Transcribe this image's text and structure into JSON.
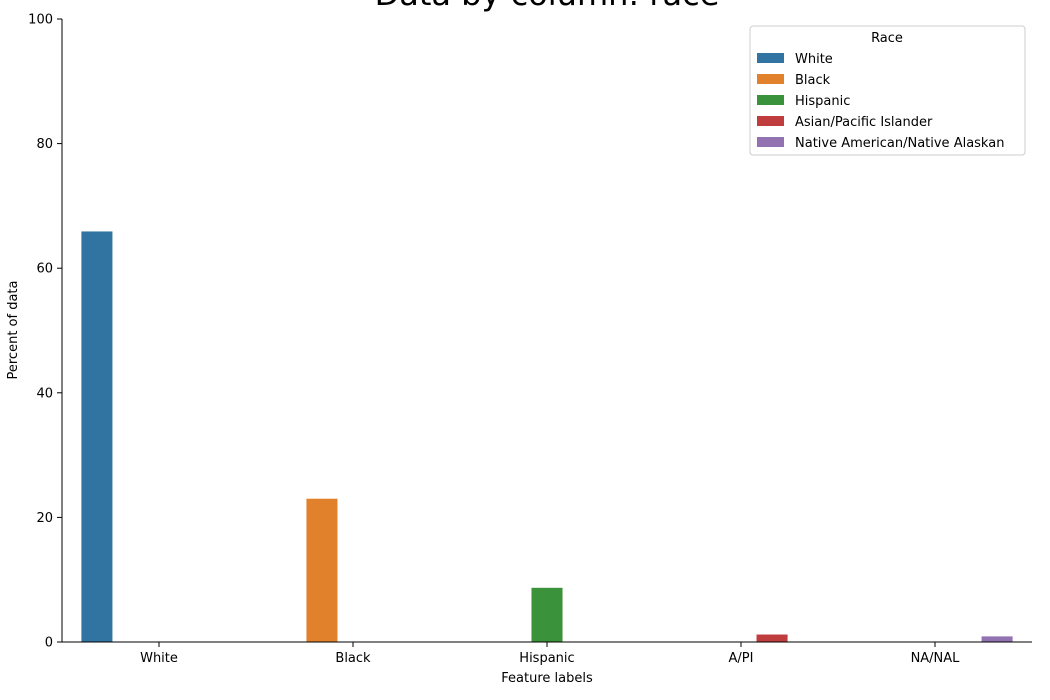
{
  "chart_data": {
    "type": "bar",
    "title": "Data by column: race",
    "xlabel": "Feature labels",
    "ylabel": "Percent of data",
    "ylim": [
      0,
      100
    ],
    "yticks": [
      0,
      20,
      40,
      60,
      80,
      100
    ],
    "categories": [
      "White",
      "Black",
      "Hispanic",
      "A/PI",
      "NA/NAL"
    ],
    "legend": {
      "title": "Race",
      "position": "top-right"
    },
    "grid": false,
    "series": [
      {
        "name": "White",
        "color": "#3274a1",
        "values": [
          65.9,
          null,
          null,
          null,
          null
        ]
      },
      {
        "name": "Black",
        "color": "#e1812c",
        "values": [
          null,
          23.0,
          null,
          null,
          null
        ]
      },
      {
        "name": "Hispanic",
        "color": "#3a923a",
        "values": [
          null,
          null,
          8.7,
          null,
          null
        ]
      },
      {
        "name": "Asian/Pacific Islander",
        "color": "#c03d3e",
        "values": [
          null,
          null,
          null,
          1.2,
          null
        ]
      },
      {
        "name": "Native American/Native Alaskan",
        "color": "#9372b2",
        "values": [
          null,
          null,
          null,
          null,
          0.9
        ]
      }
    ]
  }
}
